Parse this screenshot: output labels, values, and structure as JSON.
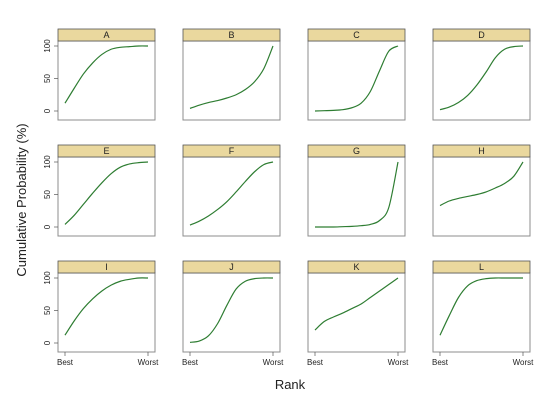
{
  "chart_data": {
    "type": "line",
    "xlabel": "Rank",
    "ylabel": "Cumulative Probability (%)",
    "x_ticks": [
      "Best",
      "Worst"
    ],
    "y_ticks": [
      0,
      50,
      100
    ],
    "ylim": [
      0,
      100
    ],
    "x": [
      1,
      2,
      3,
      4,
      5,
      6,
      7,
      8,
      9,
      10
    ],
    "grid": false,
    "line_color": "#2e7d32",
    "strip_color": "#ead89e",
    "panels": [
      {
        "label": "A",
        "values": [
          12,
          35,
          57,
          74,
          87,
          95,
          98,
          99,
          100,
          100
        ]
      },
      {
        "label": "B",
        "values": [
          4,
          9,
          13,
          16,
          20,
          25,
          33,
          45,
          65,
          100
        ]
      },
      {
        "label": "C",
        "values": [
          0,
          0.5,
          1,
          2,
          5,
          12,
          30,
          62,
          92,
          100
        ]
      },
      {
        "label": "D",
        "values": [
          2,
          6,
          13,
          24,
          40,
          60,
          82,
          95,
          99,
          100
        ]
      },
      {
        "label": "E",
        "values": [
          4,
          18,
          35,
          52,
          68,
          82,
          92,
          97,
          99,
          100
        ]
      },
      {
        "label": "F",
        "values": [
          3,
          9,
          17,
          27,
          39,
          54,
          70,
          85,
          96,
          100
        ]
      },
      {
        "label": "G",
        "values": [
          0,
          0,
          0,
          0.5,
          1,
          2,
          4,
          10,
          30,
          100
        ]
      },
      {
        "label": "H",
        "values": [
          33,
          40,
          44,
          47,
          50,
          54,
          60,
          67,
          78,
          100
        ]
      },
      {
        "label": "I",
        "values": [
          12,
          34,
          53,
          68,
          80,
          89,
          95,
          98,
          100,
          100
        ]
      },
      {
        "label": "J",
        "values": [
          1,
          3,
          11,
          30,
          58,
          83,
          95,
          99,
          100,
          100
        ]
      },
      {
        "label": "K",
        "values": [
          20,
          33,
          40,
          46,
          53,
          60,
          70,
          80,
          90,
          100
        ]
      },
      {
        "label": "L",
        "values": [
          12,
          42,
          70,
          88,
          96,
          99,
          100,
          100,
          100,
          100
        ]
      }
    ]
  }
}
